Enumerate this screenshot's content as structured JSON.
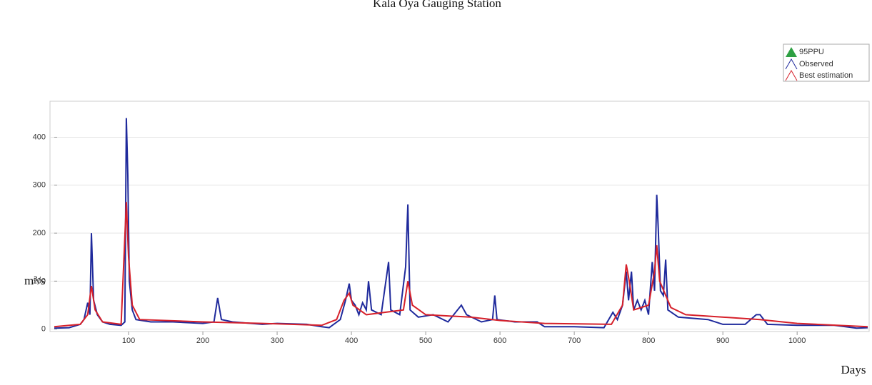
{
  "chart_data": {
    "type": "line",
    "title": "Kala Oya Gauging Station",
    "x_label": "Days",
    "y_label": "m³/s",
    "xlim": [
      0,
      1095
    ],
    "ylim": [
      -5,
      475
    ],
    "xticks": [
      100,
      200,
      300,
      400,
      500,
      600,
      700,
      800,
      900,
      1000
    ],
    "yticks": [
      0,
      100,
      200,
      300,
      400
    ],
    "grid": true,
    "legend": "top-right",
    "legend_extra": {
      "name": "95PPU",
      "color": "#2ea043"
    },
    "series": [
      {
        "name": "Observed",
        "color": "#1f2a9c",
        "x": [
          0,
          20,
          35,
          40,
          45,
          48,
          50,
          53,
          58,
          65,
          75,
          90,
          95,
          97,
          99,
          101,
          105,
          110,
          130,
          160,
          200,
          215,
          220,
          225,
          240,
          280,
          300,
          340,
          360,
          370,
          385,
          392,
          397,
          400,
          405,
          410,
          415,
          420,
          423,
          427,
          440,
          450,
          453,
          465,
          473,
          476,
          479,
          490,
          510,
          530,
          548,
          555,
          575,
          590,
          593,
          596,
          620,
          650,
          660,
          700,
          740,
          752,
          758,
          765,
          770,
          773,
          777,
          780,
          785,
          790,
          795,
          800,
          805,
          808,
          811,
          813,
          816,
          820,
          823,
          826,
          840,
          880,
          900,
          930,
          945,
          950,
          960,
          1000,
          1050,
          1080,
          1095
        ],
        "values": [
          2,
          3,
          10,
          20,
          55,
          30,
          200,
          60,
          30,
          15,
          10,
          8,
          15,
          440,
          320,
          100,
          40,
          20,
          15,
          15,
          12,
          15,
          65,
          20,
          15,
          10,
          12,
          10,
          5,
          3,
          20,
          60,
          95,
          60,
          50,
          30,
          55,
          40,
          100,
          40,
          30,
          140,
          40,
          30,
          130,
          260,
          40,
          25,
          30,
          15,
          50,
          30,
          15,
          20,
          70,
          20,
          15,
          15,
          5,
          5,
          3,
          35,
          20,
          50,
          120,
          60,
          120,
          40,
          60,
          40,
          60,
          30,
          140,
          80,
          280,
          210,
          80,
          70,
          145,
          40,
          25,
          20,
          10,
          10,
          30,
          30,
          10,
          8,
          8,
          2,
          3
        ]
      },
      {
        "name": "Best estimation",
        "color": "#d6202a",
        "x": [
          0,
          35,
          45,
          50,
          55,
          65,
          90,
          97,
          100,
          105,
          115,
          200,
          280,
          360,
          380,
          390,
          397,
          402,
          420,
          470,
          476,
          482,
          500,
          560,
          600,
          660,
          750,
          765,
          770,
          774,
          780,
          800,
          808,
          811,
          815,
          830,
          850,
          950,
          1000,
          1095
        ],
        "values": [
          5,
          10,
          30,
          90,
          40,
          15,
          10,
          265,
          150,
          50,
          20,
          15,
          12,
          8,
          20,
          60,
          75,
          50,
          30,
          40,
          100,
          50,
          30,
          25,
          18,
          12,
          10,
          50,
          135,
          100,
          40,
          50,
          120,
          175,
          100,
          45,
          30,
          20,
          12,
          5
        ]
      }
    ]
  }
}
